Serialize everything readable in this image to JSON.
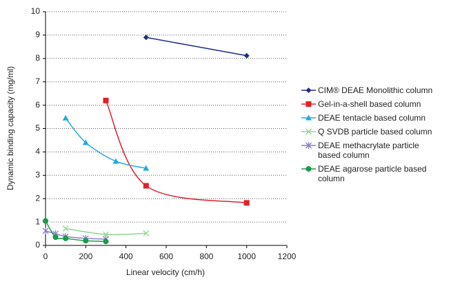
{
  "chart_data": {
    "type": "line",
    "xlabel": "Linear velocity (cm/h)",
    "ylabel": "Dynamic binding capacity (mg/ml)",
    "xlim": [
      0,
      1200
    ],
    "xticks": [
      0,
      200,
      400,
      600,
      800,
      1000,
      1200
    ],
    "ylim": [
      0,
      10
    ],
    "yticks": [
      0,
      1,
      2,
      3,
      4,
      5,
      6,
      7,
      8,
      9,
      10
    ],
    "grid": true,
    "series": [
      {
        "name": "CIM® DEAE Monolithic column",
        "color": "#1f2a8a",
        "marker": "diamond",
        "x": [
          500,
          1000
        ],
        "values": [
          8.9,
          8.12
        ]
      },
      {
        "name": "Gel-in-a-shell based column",
        "color": "#e0202a",
        "marker": "square",
        "x": [
          300,
          500,
          1000
        ],
        "values": [
          6.2,
          2.55,
          1.82
        ]
      },
      {
        "name": "DEAE tentacle based column",
        "color": "#22a8e0",
        "marker": "triangle",
        "x": [
          100,
          200,
          350,
          500
        ],
        "values": [
          5.45,
          4.4,
          3.6,
          3.3
        ]
      },
      {
        "name": "Q SVDB particle based column",
        "color": "#8ed88e",
        "marker": "x",
        "x": [
          100,
          300,
          500
        ],
        "values": [
          0.72,
          0.47,
          0.52
        ]
      },
      {
        "name": "DEAE methacrylate particle based column",
        "color": "#8a7fc8",
        "marker": "star",
        "x": [
          0,
          50,
          100,
          200,
          300
        ],
        "values": [
          0.62,
          0.5,
          0.38,
          0.3,
          0.27
        ]
      },
      {
        "name": "DEAE agarose particle based column",
        "color": "#1a9a4a",
        "marker": "circle",
        "x": [
          0,
          50,
          100,
          200,
          300
        ],
        "values": [
          1.05,
          0.35,
          0.3,
          0.2,
          0.17
        ]
      }
    ]
  }
}
